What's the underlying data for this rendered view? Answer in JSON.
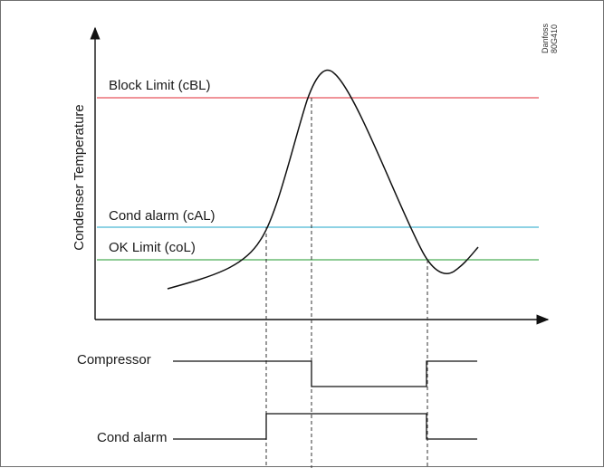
{
  "axis": {
    "y_label": "Condenser Temperature"
  },
  "brand": {
    "name": "Danfoss",
    "code": "80G410"
  },
  "limits": [
    {
      "key": "block",
      "label": "Block Limit (cBL)",
      "color": "#e8545c"
    },
    {
      "key": "cond_alarm",
      "label": "Cond alarm (cAL)",
      "color": "#4ab8d3"
    },
    {
      "key": "ok",
      "label": "OK Limit (coL)",
      "color": "#4cae57"
    }
  ],
  "signals": {
    "compressor": {
      "label": "Compressor"
    },
    "cond_alarm": {
      "label": "Cond alarm"
    }
  }
}
